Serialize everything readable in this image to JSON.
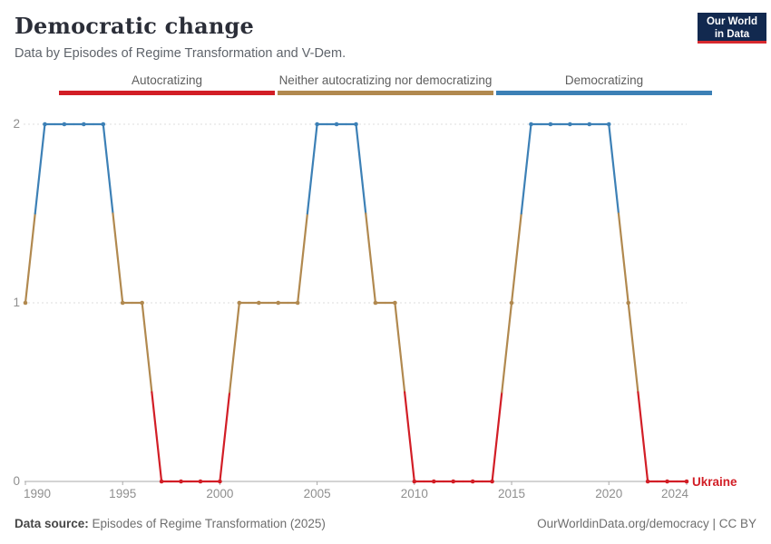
{
  "header": {
    "title": "Democratic change",
    "subtitle": "Data by Episodes of Regime Transformation and V-Dem.",
    "logo": {
      "line1": "Our World",
      "line2": "in Data",
      "bg_color": "#12294f",
      "accent_color": "#d7292f"
    }
  },
  "legend": {
    "items": [
      {
        "label": "Autocratizing",
        "color": "#d21e26"
      },
      {
        "label": "Neither autocratizing nor democratizing",
        "color": "#b1894f"
      },
      {
        "label": "Democratizing",
        "color": "#3c80b6"
      }
    ]
  },
  "chart_data": {
    "type": "line",
    "title": "Democratic change",
    "entity": "Ukraine",
    "entity_color": "#d21e26",
    "x": [
      1990,
      1991,
      1992,
      1993,
      1994,
      1995,
      1996,
      1997,
      1998,
      1999,
      2000,
      2001,
      2002,
      2003,
      2004,
      2005,
      2006,
      2007,
      2008,
      2009,
      2010,
      2011,
      2012,
      2013,
      2014,
      2015,
      2016,
      2017,
      2018,
      2019,
      2020,
      2021,
      2022,
      2023,
      2024
    ],
    "values": [
      1,
      2,
      2,
      2,
      2,
      1,
      1,
      0,
      0,
      0,
      0,
      1,
      1,
      1,
      1,
      2,
      2,
      2,
      1,
      1,
      0,
      0,
      0,
      0,
      0,
      1,
      2,
      2,
      2,
      2,
      2,
      1,
      0,
      0,
      0
    ],
    "value_categories": {
      "0": "Autocratizing",
      "1": "Neither autocratizing nor democratizing",
      "2": "Democratizing"
    },
    "value_colors": {
      "0": "#d21e26",
      "1": "#b1894f",
      "2": "#3c80b6"
    },
    "xlim": [
      1990,
      2024
    ],
    "ylim": [
      0,
      2
    ],
    "xticks": [
      1990,
      1995,
      2000,
      2005,
      2010,
      2015,
      2020,
      2024
    ],
    "yticks": [
      0,
      1,
      2
    ],
    "grid": "horizontal dashed at y=1 and y=2, solid axis at y=0",
    "legend_position": "top"
  },
  "footer": {
    "source_label": "Data source:",
    "source_text": "Episodes of Regime Transformation (2025)",
    "credit": "OurWorldinData.org/democracy | CC BY"
  }
}
